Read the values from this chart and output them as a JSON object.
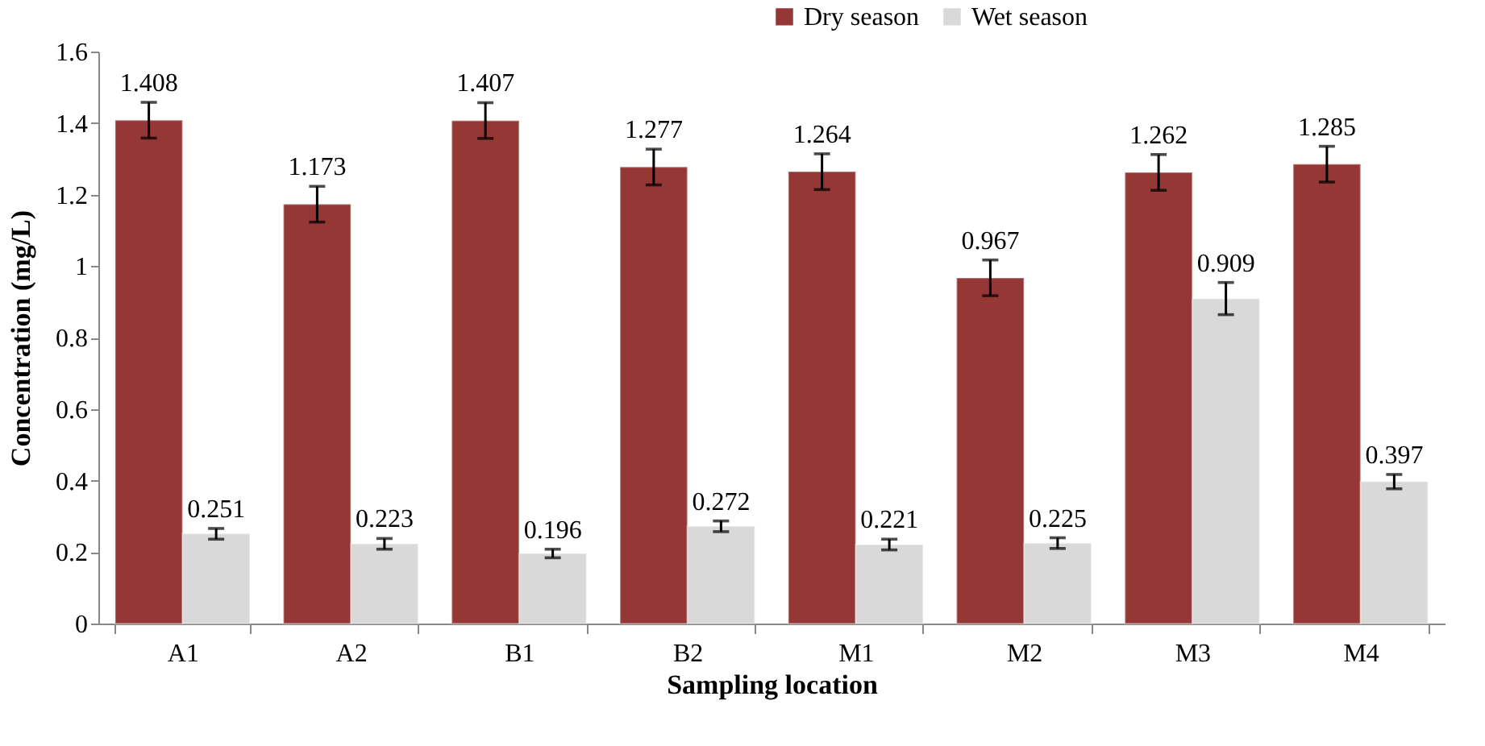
{
  "chart_data": {
    "type": "bar",
    "xlabel": "Sampling location",
    "ylabel": "Concentration (mg/L)",
    "categories": [
      "A1",
      "A2",
      "B1",
      "B2",
      "M1",
      "M2",
      "M3",
      "M4"
    ],
    "series": [
      {
        "name": "Dry season",
        "color": "#953735",
        "values": [
          1.408,
          1.173,
          1.407,
          1.277,
          1.264,
          0.967,
          1.262,
          1.285
        ],
        "errors": [
          0.05,
          0.05,
          0.05,
          0.05,
          0.05,
          0.05,
          0.05,
          0.05
        ]
      },
      {
        "name": "Wet season",
        "color": "#d9d9d9",
        "values": [
          0.251,
          0.223,
          0.196,
          0.272,
          0.221,
          0.225,
          0.909,
          0.397
        ],
        "errors": [
          0.015,
          0.015,
          0.012,
          0.015,
          0.015,
          0.015,
          0.045,
          0.02
        ]
      }
    ],
    "ylim": [
      0,
      1.6
    ],
    "yticks": [
      0,
      0.2,
      0.4,
      0.6,
      0.8,
      1,
      1.2,
      1.4,
      1.6
    ],
    "grid": false,
    "legend": "top right",
    "data_labels": true
  }
}
